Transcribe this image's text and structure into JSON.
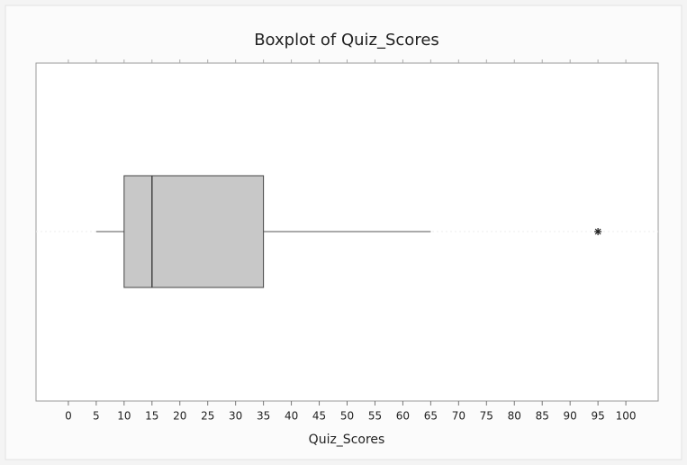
{
  "chart_data": {
    "type": "box",
    "title": "Boxplot of Quiz_Scores",
    "xlabel": "Quiz_Scores",
    "stats": {
      "min": 5,
      "q1": 10,
      "median": 15,
      "q3": 35,
      "max": 65,
      "outliers": [
        95
      ]
    },
    "color": "#c8c8c8",
    "xlim": [
      -5.8,
      105.8
    ],
    "xticks": [
      0,
      5,
      10,
      15,
      20,
      25,
      30,
      35,
      40,
      45,
      50,
      55,
      60,
      65,
      70,
      75,
      80,
      85,
      90,
      95,
      100
    ]
  }
}
